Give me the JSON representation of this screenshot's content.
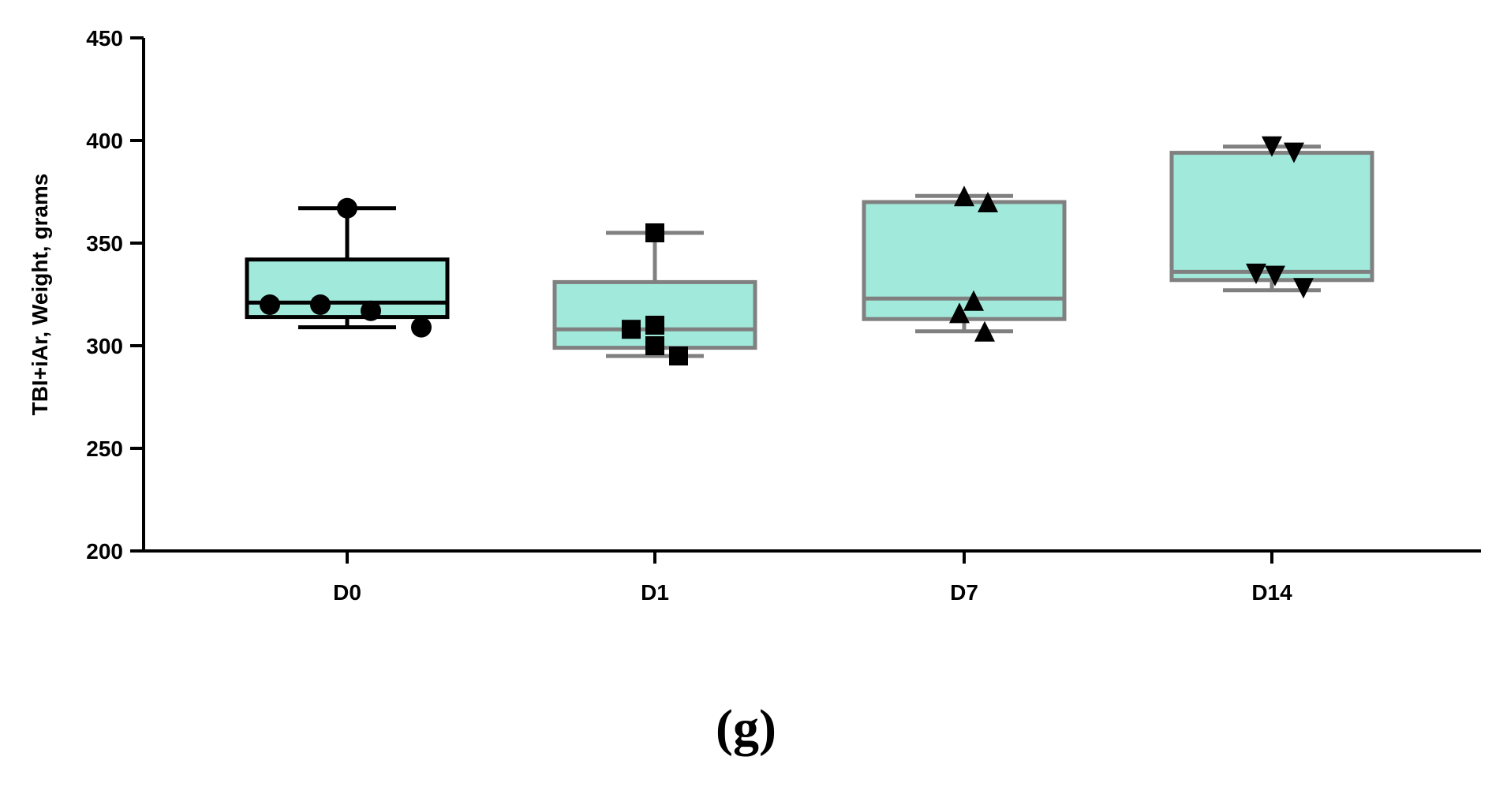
{
  "panel_label": "(g)",
  "colors": {
    "box_fill": "#a1eadb",
    "box_stroke_d0": "#000000",
    "box_stroke_other": "#808080",
    "marker": "#000000",
    "axis": "#000000"
  },
  "chart_data": {
    "type": "box",
    "title": "",
    "xlabel": "",
    "ylabel": "TBI+iAr, Weight, grams",
    "ylim": [
      200,
      450
    ],
    "yticks": [
      200,
      250,
      300,
      350,
      400,
      450
    ],
    "grid": false,
    "categories": [
      "D0",
      "D1",
      "D7",
      "D14"
    ],
    "boxes": [
      {
        "category": "D0",
        "min": 309,
        "q1": 314,
        "median": 321,
        "q3": 342,
        "max": 367,
        "marker": "circle",
        "points": [
          367,
          320,
          320,
          317,
          309
        ]
      },
      {
        "category": "D1",
        "min": 295,
        "q1": 299,
        "median": 308,
        "q3": 331,
        "max": 355,
        "marker": "square",
        "points": [
          355,
          310,
          308,
          300,
          295
        ]
      },
      {
        "category": "D7",
        "min": 307,
        "q1": 313,
        "median": 323,
        "q3": 370,
        "max": 373,
        "marker": "triangle-up",
        "points": [
          373,
          370,
          322,
          316,
          307
        ]
      },
      {
        "category": "D14",
        "min": 327,
        "q1": 332,
        "median": 336,
        "q3": 394,
        "max": 397,
        "marker": "triangle-down",
        "points": [
          397,
          394,
          335,
          334,
          328
        ]
      }
    ]
  }
}
